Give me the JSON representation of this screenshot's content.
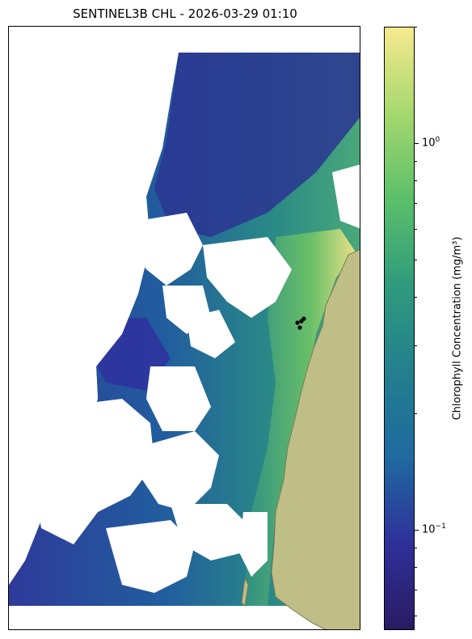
{
  "title": "SENTINEL3B CHL - 2026-03-29 01:10",
  "colorbar": {
    "label": "Chlorophyll Concentration (mg/m³)",
    "scale": "log",
    "min": 0.055,
    "max": 2.0,
    "tick_major": [
      {
        "value": 1.0,
        "label": "10^0"
      },
      {
        "value": 0.1,
        "label": "10^-1"
      }
    ],
    "tick_minor": [
      0.06,
      0.07,
      0.08,
      0.09,
      0.2,
      0.3,
      0.4,
      0.5,
      0.6,
      0.7,
      0.8,
      0.9,
      2.0
    ],
    "colors": [
      "#2a1a63",
      "#2e3099",
      "#1f6aa0",
      "#237f8e",
      "#2f9a7d",
      "#5bbf6a",
      "#a5d86e",
      "#f7e98e"
    ]
  },
  "chart_data": {
    "type": "heatmap",
    "title": "SENTINEL3B CHL - 2026-03-29 01:10",
    "colorbar_label": "Chlorophyll Concentration (mg/m³)",
    "value_range": [
      0.055,
      2.0
    ],
    "scale": "log",
    "land_color": "#bfbe86",
    "no_data_color": "#ffffff",
    "marker_color": "#000000",
    "marker_count": 4
  }
}
